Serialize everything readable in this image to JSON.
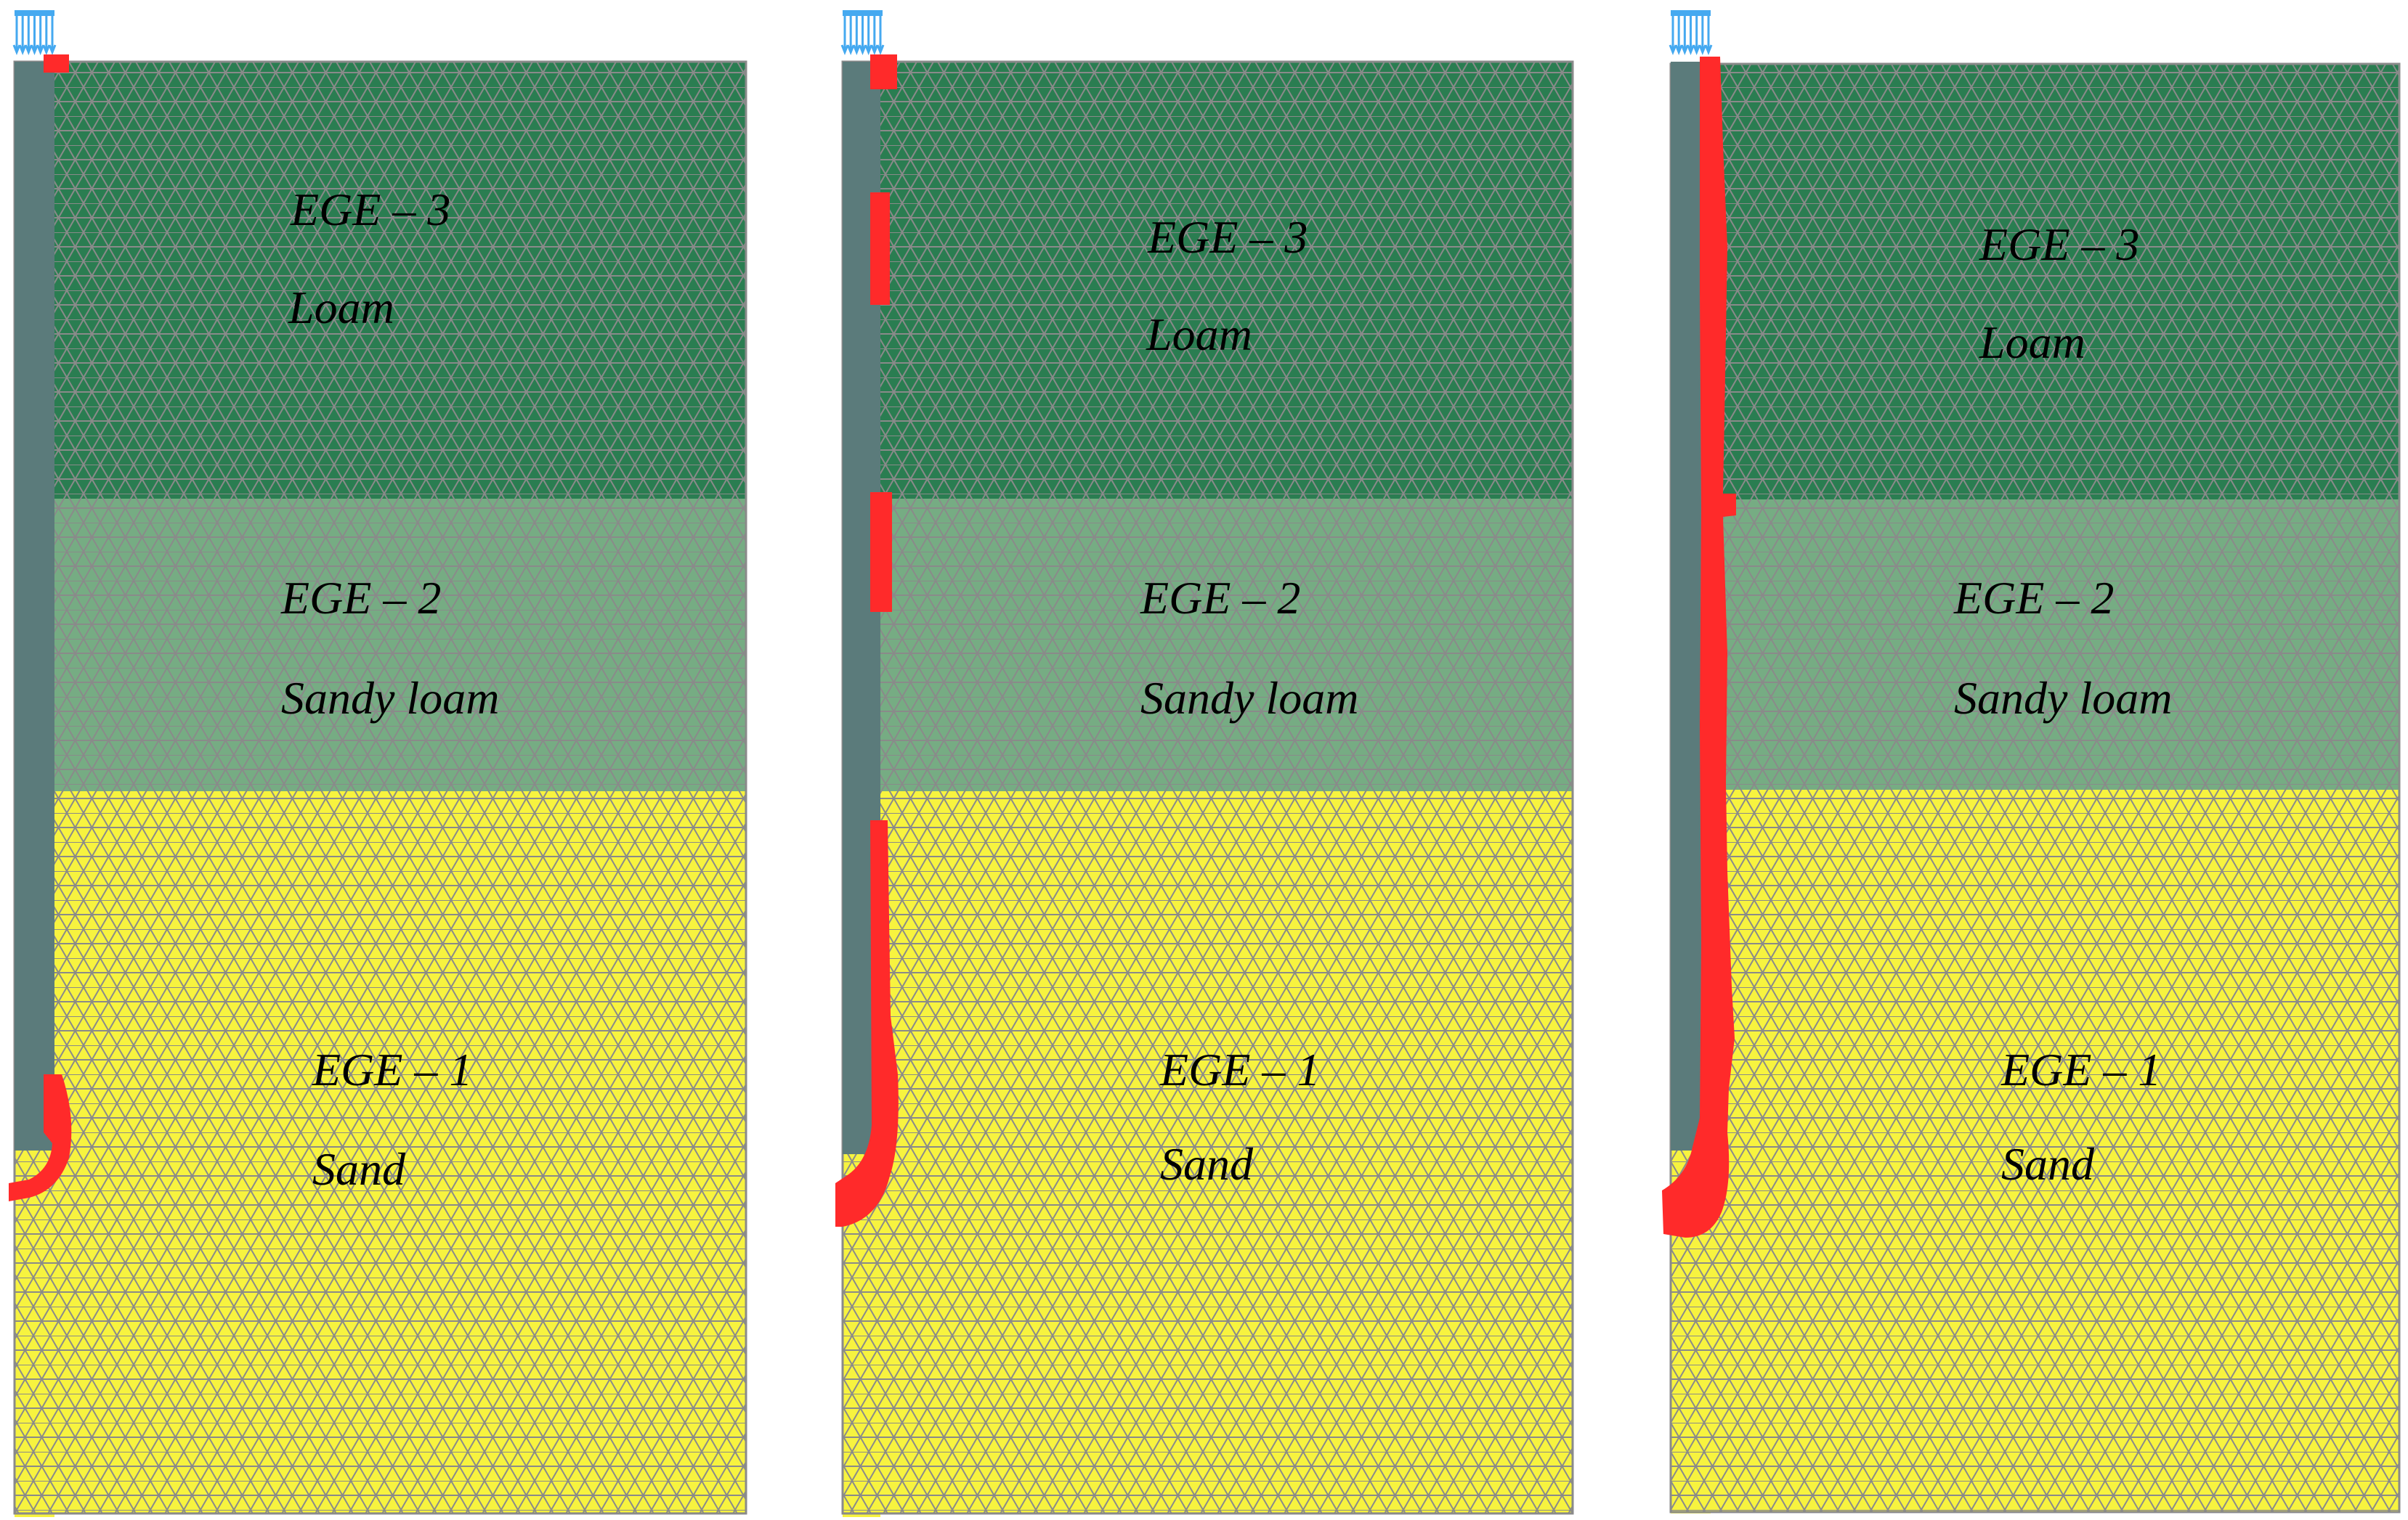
{
  "colors": {
    "background": "#ffffff",
    "loam": "#2a7d51",
    "sandy_loam": "#76ac83",
    "sand": "#f7f33f",
    "mesh_line": "#8a8a8a",
    "pile": "#5b7b7b",
    "load": "#45a9f0",
    "plastic_zone": "#ff2a2a"
  },
  "panels": [
    {
      "layers": [
        {
          "code": "EGE – 3",
          "name": "Loam"
        },
        {
          "code": "EGE – 2",
          "name": "Sandy loam"
        },
        {
          "code": "EGE – 1",
          "name": "Sand"
        }
      ],
      "plastic_zone_pattern": "pile tip and head only"
    },
    {
      "layers": [
        {
          "code": "EGE – 3",
          "name": "Loam"
        },
        {
          "code": "EGE – 2",
          "name": "Sandy loam"
        },
        {
          "code": "EGE – 1",
          "name": "Sand"
        }
      ],
      "plastic_zone_pattern": "partial shaft patches and tip"
    },
    {
      "layers": [
        {
          "code": "EGE – 3",
          "name": "Loam"
        },
        {
          "code": "EGE – 2",
          "name": "Sandy loam"
        },
        {
          "code": "EGE – 1",
          "name": "Sand"
        }
      ],
      "plastic_zone_pattern": "full shaft and tip"
    }
  ],
  "icons": {
    "load": "distributed-load-arrows-icon",
    "plastic": "plastic-point-zone"
  }
}
